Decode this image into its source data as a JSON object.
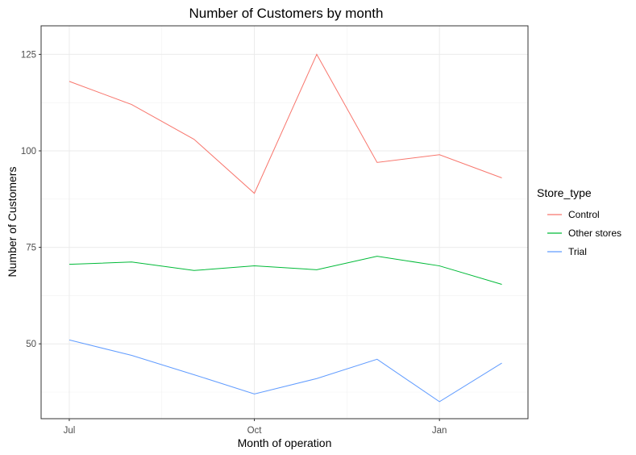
{
  "chart_data": {
    "type": "line",
    "title": "Number of Customers by month",
    "xlabel": "Month of operation",
    "ylabel": "Number of Customers",
    "x": [
      "2018-07",
      "2018-08",
      "2018-09",
      "2018-10",
      "2018-11",
      "2018-12",
      "2019-01",
      "2019-02"
    ],
    "x_ticks": [
      {
        "value": "2018-07",
        "label": "Jul"
      },
      {
        "value": "2018-10",
        "label": "Oct"
      },
      {
        "value": "2019-01",
        "label": "Jan"
      }
    ],
    "y_ticks": [
      50,
      75,
      100,
      125
    ],
    "ylim": [
      30.6,
      132.4
    ],
    "xlim": [
      "2018-06-17",
      "2019-02-14"
    ],
    "grid": true,
    "legend": {
      "title": "Store_type",
      "placement": "right"
    },
    "series": [
      {
        "name": "Control",
        "color": "#F8766D",
        "values": [
          118,
          112,
          103,
          89,
          125,
          97,
          99,
          93
        ]
      },
      {
        "name": "Other stores",
        "color": "#00BA38",
        "values": [
          70.6,
          71.2,
          69.0,
          70.2,
          69.2,
          72.7,
          70.2,
          65.4
        ]
      },
      {
        "name": "Trial",
        "color": "#619CFF",
        "values": [
          51,
          47,
          42,
          37,
          41,
          46,
          35,
          45
        ]
      }
    ]
  }
}
